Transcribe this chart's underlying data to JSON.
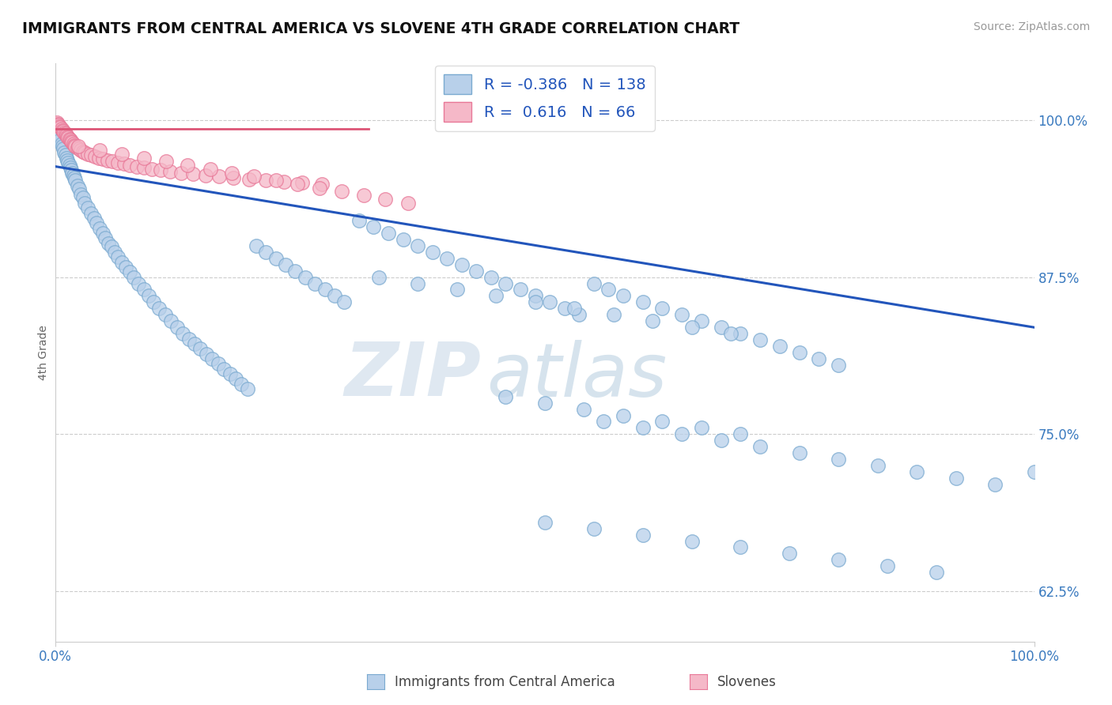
{
  "title": "IMMIGRANTS FROM CENTRAL AMERICA VS SLOVENE 4TH GRADE CORRELATION CHART",
  "source": "Source: ZipAtlas.com",
  "ylabel": "4th Grade",
  "ytick_labels": [
    "62.5%",
    "75.0%",
    "87.5%",
    "100.0%"
  ],
  "ytick_values": [
    0.625,
    0.75,
    0.875,
    1.0
  ],
  "xmin": 0.0,
  "xmax": 1.0,
  "ymin": 0.585,
  "ymax": 1.045,
  "blue_R": -0.386,
  "blue_N": 138,
  "pink_R": 0.616,
  "pink_N": 66,
  "blue_color": "#b8d0ea",
  "blue_edge": "#7aaad0",
  "pink_color": "#f5b8c8",
  "pink_edge": "#e87898",
  "trend_blue": "#2255bb",
  "trend_pink": "#dd5577",
  "watermark_zip": "ZIP",
  "watermark_atlas": "atlas",
  "legend_label_blue": "Immigrants from Central America",
  "legend_label_pink": "Slovenes",
  "blue_trend_x0": 0.0,
  "blue_trend_y0": 0.963,
  "blue_trend_x1": 1.0,
  "blue_trend_y1": 0.835,
  "pink_trend_x0": 0.0,
  "pink_trend_y0": 0.993,
  "pink_trend_x1": 0.32,
  "pink_trend_y1": 0.993,
  "blue_scatter_x": [
    0.001,
    0.002,
    0.003,
    0.004,
    0.005,
    0.006,
    0.007,
    0.008,
    0.009,
    0.01,
    0.011,
    0.012,
    0.013,
    0.014,
    0.015,
    0.016,
    0.017,
    0.018,
    0.019,
    0.02,
    0.022,
    0.024,
    0.026,
    0.028,
    0.03,
    0.033,
    0.036,
    0.039,
    0.042,
    0.045,
    0.048,
    0.051,
    0.054,
    0.057,
    0.06,
    0.064,
    0.068,
    0.072,
    0.076,
    0.08,
    0.085,
    0.09,
    0.095,
    0.1,
    0.106,
    0.112,
    0.118,
    0.124,
    0.13,
    0.136,
    0.142,
    0.148,
    0.154,
    0.16,
    0.166,
    0.172,
    0.178,
    0.184,
    0.19,
    0.196,
    0.205,
    0.215,
    0.225,
    0.235,
    0.245,
    0.255,
    0.265,
    0.275,
    0.285,
    0.295,
    0.31,
    0.325,
    0.34,
    0.355,
    0.37,
    0.385,
    0.4,
    0.415,
    0.43,
    0.445,
    0.46,
    0.475,
    0.49,
    0.505,
    0.52,
    0.535,
    0.55,
    0.565,
    0.58,
    0.6,
    0.62,
    0.64,
    0.66,
    0.68,
    0.7,
    0.72,
    0.74,
    0.76,
    0.78,
    0.8,
    0.33,
    0.37,
    0.41,
    0.45,
    0.49,
    0.53,
    0.57,
    0.61,
    0.65,
    0.69,
    0.46,
    0.5,
    0.54,
    0.58,
    0.62,
    0.66,
    0.7,
    0.56,
    0.6,
    0.64,
    0.68,
    0.72,
    0.76,
    0.8,
    0.84,
    0.88,
    0.92,
    0.96,
    1.0,
    0.5,
    0.55,
    0.6,
    0.65,
    0.7,
    0.75,
    0.8,
    0.85,
    0.9
  ],
  "blue_scatter_y": [
    0.996,
    0.991,
    0.989,
    0.987,
    0.984,
    0.981,
    0.979,
    0.977,
    0.974,
    0.972,
    0.97,
    0.968,
    0.966,
    0.964,
    0.962,
    0.96,
    0.958,
    0.956,
    0.954,
    0.952,
    0.948,
    0.945,
    0.941,
    0.938,
    0.934,
    0.93,
    0.926,
    0.922,
    0.918,
    0.914,
    0.91,
    0.906,
    0.902,
    0.899,
    0.895,
    0.891,
    0.887,
    0.883,
    0.879,
    0.875,
    0.87,
    0.865,
    0.86,
    0.855,
    0.85,
    0.845,
    0.84,
    0.835,
    0.83,
    0.826,
    0.822,
    0.818,
    0.814,
    0.81,
    0.806,
    0.802,
    0.798,
    0.794,
    0.79,
    0.786,
    0.9,
    0.895,
    0.89,
    0.885,
    0.88,
    0.875,
    0.87,
    0.865,
    0.86,
    0.855,
    0.92,
    0.915,
    0.91,
    0.905,
    0.9,
    0.895,
    0.89,
    0.885,
    0.88,
    0.875,
    0.87,
    0.865,
    0.86,
    0.855,
    0.85,
    0.845,
    0.87,
    0.865,
    0.86,
    0.855,
    0.85,
    0.845,
    0.84,
    0.835,
    0.83,
    0.825,
    0.82,
    0.815,
    0.81,
    0.805,
    0.875,
    0.87,
    0.865,
    0.86,
    0.855,
    0.85,
    0.845,
    0.84,
    0.835,
    0.83,
    0.78,
    0.775,
    0.77,
    0.765,
    0.76,
    0.755,
    0.75,
    0.76,
    0.755,
    0.75,
    0.745,
    0.74,
    0.735,
    0.73,
    0.725,
    0.72,
    0.715,
    0.71,
    0.72,
    0.68,
    0.675,
    0.67,
    0.665,
    0.66,
    0.655,
    0.65,
    0.645,
    0.64
  ],
  "pink_scatter_x": [
    0.001,
    0.002,
    0.003,
    0.004,
    0.005,
    0.006,
    0.007,
    0.008,
    0.009,
    0.01,
    0.011,
    0.012,
    0.013,
    0.014,
    0.015,
    0.016,
    0.017,
    0.018,
    0.019,
    0.02,
    0.022,
    0.024,
    0.026,
    0.028,
    0.03,
    0.033,
    0.036,
    0.04,
    0.044,
    0.048,
    0.053,
    0.058,
    0.064,
    0.07,
    0.076,
    0.083,
    0.09,
    0.098,
    0.107,
    0.117,
    0.128,
    0.14,
    0.153,
    0.167,
    0.182,
    0.198,
    0.215,
    0.233,
    0.252,
    0.272,
    0.023,
    0.045,
    0.068,
    0.09,
    0.113,
    0.135,
    0.158,
    0.18,
    0.203,
    0.225,
    0.247,
    0.27,
    0.292,
    0.315,
    0.337,
    0.36
  ],
  "pink_scatter_y": [
    0.998,
    0.997,
    0.996,
    0.995,
    0.994,
    0.993,
    0.992,
    0.991,
    0.99,
    0.989,
    0.988,
    0.987,
    0.986,
    0.985,
    0.984,
    0.983,
    0.982,
    0.981,
    0.98,
    0.979,
    0.978,
    0.977,
    0.976,
    0.975,
    0.974,
    0.973,
    0.972,
    0.971,
    0.97,
    0.969,
    0.968,
    0.967,
    0.966,
    0.965,
    0.964,
    0.963,
    0.962,
    0.961,
    0.96,
    0.959,
    0.958,
    0.957,
    0.956,
    0.955,
    0.954,
    0.953,
    0.952,
    0.951,
    0.95,
    0.949,
    0.979,
    0.976,
    0.973,
    0.97,
    0.967,
    0.964,
    0.961,
    0.958,
    0.955,
    0.952,
    0.949,
    0.946,
    0.943,
    0.94,
    0.937,
    0.934
  ]
}
